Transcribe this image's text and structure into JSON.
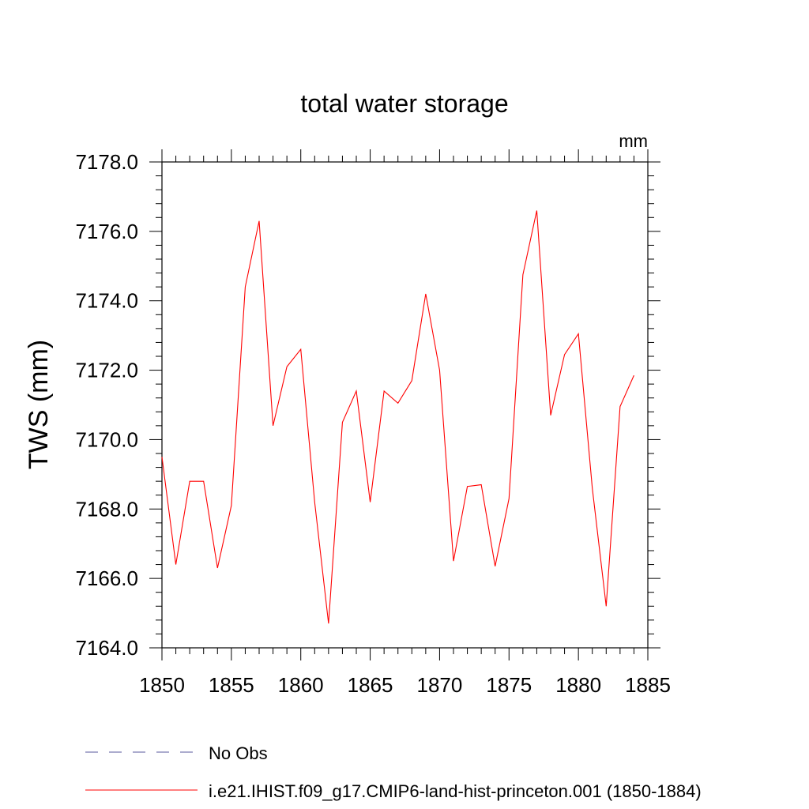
{
  "chart_data": {
    "type": "line",
    "title": "total water storage",
    "units": "mm",
    "ylabel": "TWS  (mm)",
    "xlabel": "",
    "xlim": [
      1850,
      1885
    ],
    "ylim": [
      7164.0,
      7178.0
    ],
    "x_ticks": [
      "1850",
      "1855",
      "1860",
      "1865",
      "1870",
      "1875",
      "1880",
      "1885"
    ],
    "y_ticks": [
      "7164.0",
      "7166.0",
      "7168.0",
      "7170.0",
      "7172.0",
      "7174.0",
      "7176.0",
      "7178.0"
    ],
    "grid": false,
    "legend_position": "bottom",
    "series": [
      {
        "name": "i.e21.IHIST.f09_g17.CMIP6-land-hist-princeton.001 (1850-1884)",
        "color": "#ff0000",
        "style": "solid",
        "x": [
          1850,
          1851,
          1852,
          1853,
          1854,
          1855,
          1856,
          1857,
          1858,
          1859,
          1860,
          1861,
          1862,
          1863,
          1864,
          1865,
          1866,
          1867,
          1868,
          1869,
          1870,
          1871,
          1872,
          1873,
          1874,
          1875,
          1876,
          1877,
          1878,
          1879,
          1880,
          1881,
          1882,
          1883,
          1884
        ],
        "values": [
          7169.5,
          7166.4,
          7168.8,
          7168.8,
          7166.3,
          7168.1,
          7174.4,
          7176.3,
          7170.4,
          7172.1,
          7172.6,
          7168.2,
          7164.7,
          7170.5,
          7171.4,
          7168.2,
          7171.4,
          7171.05,
          7171.7,
          7174.2,
          7172.0,
          7166.5,
          7168.65,
          7168.7,
          7166.35,
          7168.3,
          7174.75,
          7176.6,
          7170.7,
          7172.45,
          7173.05,
          7168.6,
          7165.2,
          7170.95,
          7171.85
        ]
      },
      {
        "name": "No Obs",
        "color": "#5a5a9e",
        "style": "dashed",
        "x": [],
        "values": []
      }
    ]
  }
}
